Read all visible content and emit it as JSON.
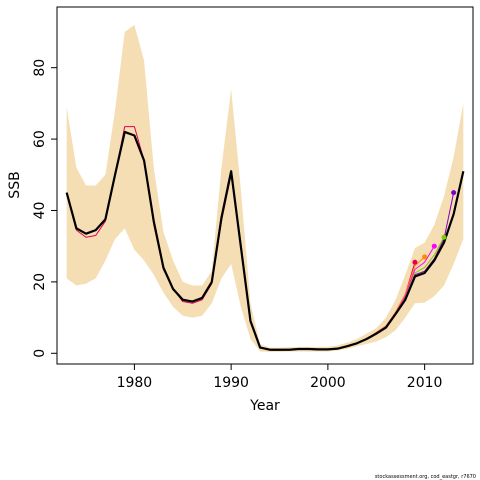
{
  "chart_data": {
    "type": "line",
    "xlabel": "Year",
    "ylabel": "SSB",
    "xlim": [
      1972,
      2015
    ],
    "ylim": [
      -3,
      97
    ],
    "x_ticks": [
      1980,
      1990,
      2000,
      2010
    ],
    "y_ticks": [
      0,
      20,
      40,
      60,
      80
    ],
    "grid": false,
    "band": {
      "color": "#f5deb3",
      "x": [
        1973,
        1974,
        1975,
        1976,
        1977,
        1978,
        1979,
        1980,
        1981,
        1982,
        1983,
        1984,
        1985,
        1986,
        1987,
        1988,
        1989,
        1990,
        1991,
        1992,
        1993,
        1994,
        1995,
        1996,
        1997,
        1998,
        1999,
        2000,
        2001,
        2002,
        2003,
        2004,
        2005,
        2006,
        2007,
        2008,
        2009,
        2010,
        2011,
        2012,
        2013,
        2014
      ],
      "upper": [
        69,
        52,
        47,
        47,
        50,
        68,
        90,
        92,
        82,
        52,
        34,
        26,
        20,
        19,
        19,
        23,
        52,
        74,
        46,
        14,
        2.5,
        1.6,
        1.6,
        1.7,
        1.8,
        1.8,
        1.8,
        1.8,
        2.2,
        3,
        4,
        5.5,
        7,
        10,
        15,
        22,
        29.5,
        31,
        36,
        44,
        55,
        70
      ],
      "lower": [
        21,
        19,
        19.5,
        21,
        26,
        32,
        35,
        29,
        26,
        22,
        17,
        13,
        10.5,
        10,
        10.5,
        14,
        21,
        25,
        13,
        4,
        0.5,
        0.4,
        0.4,
        0.5,
        0.5,
        0.5,
        0.5,
        0.5,
        0.8,
        1.2,
        2,
        2.6,
        3.3,
        4.5,
        6.5,
        10,
        14,
        14.2,
        16,
        19,
        25,
        32
      ]
    },
    "series": [
      {
        "color": "#000000",
        "x": [
          1973,
          1974,
          1975,
          1976,
          1977,
          1978,
          1979,
          1980,
          1981,
          1982,
          1983,
          1984,
          1985,
          1986,
          1987,
          1988,
          1989,
          1990,
          1991,
          1992,
          1993,
          1994,
          1995,
          1996,
          1997,
          1998,
          1999,
          2000,
          2001,
          2002,
          2003,
          2004,
          2005,
          2006,
          2007,
          2008,
          2009,
          2010,
          2011,
          2012,
          2013,
          2014
        ],
        "y": [
          45,
          35,
          33.5,
          34.5,
          37.5,
          50,
          62,
          61,
          54,
          37,
          24,
          18,
          15,
          14.5,
          15.5,
          20,
          38,
          51,
          30,
          9,
          1.6,
          1,
          1,
          1,
          1.2,
          1.2,
          1.1,
          1.1,
          1.3,
          2,
          2.8,
          4,
          5.5,
          7.2,
          11,
          15,
          21.5,
          22.5,
          26,
          31,
          39,
          51
        ]
      },
      {
        "color": "#e0004e",
        "x": [
          1973,
          1974,
          1975,
          1976,
          1977,
          1978,
          1979,
          1980,
          1981,
          1982,
          1983,
          1984,
          1985,
          1986,
          1987,
          1988,
          1989,
          1990,
          1991,
          1992,
          1993,
          1994,
          1995,
          1996,
          1997,
          1998,
          1999,
          2000,
          2001,
          2002,
          2003,
          2004,
          2005,
          2006,
          2007,
          2008,
          2009
        ],
        "y": [
          45,
          34.5,
          32.5,
          33,
          37,
          50,
          63.5,
          63.5,
          54,
          36,
          23.5,
          18,
          14.5,
          14,
          15,
          19.5,
          37,
          50,
          29.5,
          9,
          1.5,
          0.9,
          0.9,
          1,
          1.1,
          1.1,
          1,
          1,
          1.3,
          2,
          2.9,
          4.1,
          5.8,
          7.6,
          11.5,
          16.5,
          25.5
        ]
      },
      {
        "color": "#ff8c00",
        "x": [
          2005,
          2006,
          2007,
          2008,
          2009,
          2010
        ],
        "y": [
          5.7,
          7.5,
          11.5,
          16.5,
          24.5,
          27
        ]
      },
      {
        "color": "#ff00ff",
        "x": [
          2006,
          2007,
          2008,
          2009,
          2010,
          2011
        ],
        "y": [
          7.4,
          11.2,
          16,
          23.5,
          25.5,
          30
        ]
      },
      {
        "color": "#7fcc00",
        "x": [
          2007,
          2008,
          2009,
          2010,
          2011,
          2012
        ],
        "y": [
          11,
          15.5,
          22.5,
          24,
          27.5,
          32.5
        ]
      },
      {
        "color": "#8000c0",
        "x": [
          2008,
          2009,
          2010,
          2011,
          2012,
          2013
        ],
        "y": [
          15.3,
          22,
          23,
          26.5,
          32,
          45
        ]
      }
    ],
    "end_points": [
      {
        "x": 2009,
        "y": 25.5,
        "color": "#e0004e"
      },
      {
        "x": 2010,
        "y": 27,
        "color": "#ff8c00"
      },
      {
        "x": 2011,
        "y": 30,
        "color": "#ff00ff"
      },
      {
        "x": 2012,
        "y": 32.5,
        "color": "#7fcc00"
      },
      {
        "x": 2013,
        "y": 45,
        "color": "#8000c0"
      }
    ]
  },
  "credit": "stockassessment.org, cod_eastgr, r7670"
}
